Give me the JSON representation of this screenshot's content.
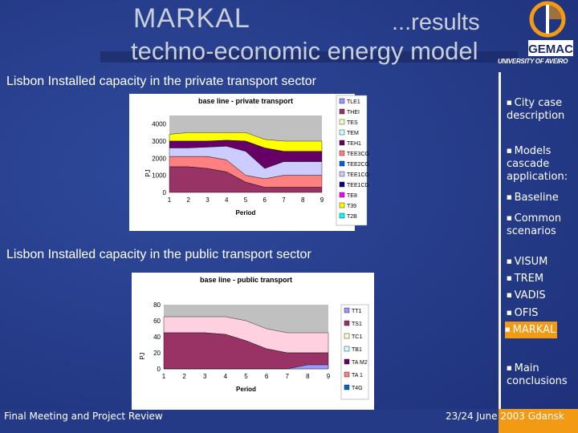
{
  "slide": {
    "title_left": "MARKAL",
    "title_right": "...results",
    "title_line2": "techno-economic energy model",
    "logo_text": "GEMAC",
    "university": "UNIVERSITY OF AVEIRO"
  },
  "sections": {
    "private_title": "Lisbon Installed capacity in the private transport sector",
    "public_title": "Lisbon Installed capacity in the public transport sector"
  },
  "chart_data": [
    {
      "type": "area",
      "title": "base line - private transport",
      "xlabel": "Period",
      "ylabel": "PJ",
      "ylim": [
        0,
        4500
      ],
      "yticks": [
        0,
        1000,
        2000,
        3000,
        4000
      ],
      "x": [
        1,
        2,
        3,
        4,
        5,
        6,
        7,
        8,
        9
      ],
      "legend": [
        "TLE1",
        "THEI",
        "TES",
        "TEM",
        "TEH1",
        "TEE3CG",
        "TEE2CG",
        "TEE1CG",
        "TEE1CD",
        "TE8",
        "T39",
        "T2B"
      ],
      "colors": [
        "#9999ff",
        "#993366",
        "#ffffcc",
        "#ccffff",
        "#660066",
        "#ff8080",
        "#0066cc",
        "#ccccff",
        "#000080",
        "#ff00ff",
        "#ffff00",
        "#00ffff"
      ]
    },
    {
      "type": "area",
      "title": "base line - public transport",
      "xlabel": "Period",
      "ylabel": "PJ",
      "ylim": [
        0,
        80
      ],
      "yticks": [
        0,
        20,
        40,
        60,
        80
      ],
      "x": [
        1,
        2,
        3,
        4,
        5,
        6,
        7,
        8,
        9
      ],
      "legend": [
        "TT1",
        "TS1",
        "TC1",
        "TB1",
        "TA M2",
        "TA 1",
        "T4G"
      ],
      "colors": [
        "#9999ff",
        "#993366",
        "#ffffcc",
        "#ccffff",
        "#660066",
        "#ff8080",
        "#0066cc"
      ]
    }
  ],
  "sidebar": [
    {
      "label": "City case description"
    },
    {
      "label": "Models cascade application:"
    },
    {
      "label": "Baseline"
    },
    {
      "label": "Common scenarios"
    },
    {
      "label": "VISUM"
    },
    {
      "label": "TREM"
    },
    {
      "label": "VADIS"
    },
    {
      "label": "OFIS"
    },
    {
      "label": "MARKAL"
    },
    {
      "label": "Main conclusions"
    }
  ],
  "footer": {
    "left": "Final Meeting and Project Review",
    "right": "23/24 June 2003 Gdansk"
  }
}
